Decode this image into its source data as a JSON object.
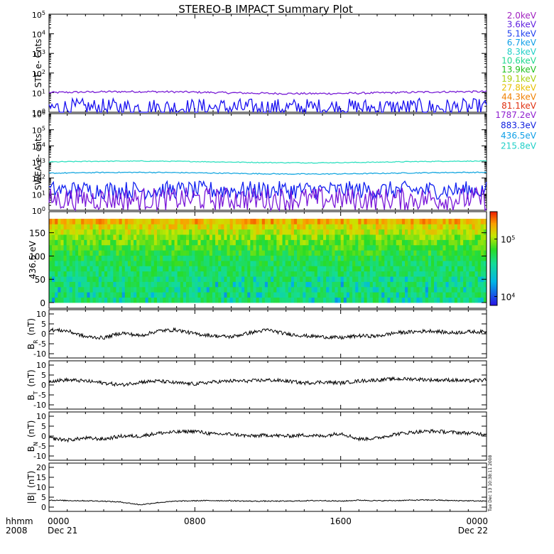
{
  "title": "STEREO-B IMPACT Summary Plot",
  "colors": {
    "ste_low": "#7a1fd6",
    "ste_high": "#1a10f0",
    "swea_a": "#30e0c0",
    "swea_b": "#18a8e0",
    "swea_c": "#1020f0",
    "swea_d": "#7a18d8",
    "trace": "#000000"
  },
  "ste_legend": [
    {
      "label": "2.0keV",
      "color": "#a020c0"
    },
    {
      "label": "3.6keV",
      "color": "#6020e0"
    },
    {
      "label": "5.1keV",
      "color": "#2040f0"
    },
    {
      "label": "6.7keV",
      "color": "#10a0e8"
    },
    {
      "label": "8.3keV",
      "color": "#20d0c8"
    },
    {
      "label": "10.6keV",
      "color": "#20d890"
    },
    {
      "label": "13.9keV",
      "color": "#20c020"
    },
    {
      "label": "19.1keV",
      "color": "#a8d010"
    },
    {
      "label": "27.8keV",
      "color": "#e8c000"
    },
    {
      "label": "44.3keV",
      "color": "#f08000"
    },
    {
      "label": "81.1keV",
      "color": "#e03010"
    }
  ],
  "swea_legend": [
    {
      "label": "1787.2eV",
      "color": "#9020d0"
    },
    {
      "label": "883.3eV",
      "color": "#1020e0"
    },
    {
      "label": "436.5eV",
      "color": "#10a0e8"
    },
    {
      "label": "215.8eV",
      "color": "#20d0c8"
    }
  ],
  "x_axis": {
    "corner_label_1": "hhmm",
    "corner_label_2": "2008",
    "ticks": [
      {
        "t": 0,
        "label": "0000",
        "sub": "Dec 21"
      },
      {
        "t": 8,
        "label": "0800",
        "sub": ""
      },
      {
        "t": 16,
        "label": "1600",
        "sub": ""
      },
      {
        "t": 24,
        "label": "0000",
        "sub": "Dec 22"
      }
    ]
  },
  "timestamp": "Tue Dec 13 10:38:11 2008",
  "chart_data": [
    {
      "type": "line",
      "panel": "ste",
      "ylabel": "STE e- Cnts",
      "yscale": "log",
      "ylim": [
        1,
        100000
      ],
      "yticks": [
        {
          "v": 1,
          "label": "10",
          "exp": "0"
        },
        {
          "v": 10,
          "label": "10",
          "exp": "1"
        },
        {
          "v": 100,
          "label": "10",
          "exp": "2"
        },
        {
          "v": 1000,
          "label": "10",
          "exp": "3"
        },
        {
          "v": 10000,
          "label": "10",
          "exp": "4"
        },
        {
          "v": 100000,
          "label": "10",
          "exp": "5"
        }
      ],
      "series": [
        {
          "level": 10,
          "noise": 0.1,
          "color_key": "ste_low"
        },
        {
          "level": 1.2,
          "noise": 0.3,
          "color_key": "ste_high",
          "spiky": true
        }
      ]
    },
    {
      "type": "line",
      "panel": "swea",
      "ylabel": "SWEA e- cnts",
      "yscale": "log",
      "ylim": [
        1,
        1000000
      ],
      "yticks": [
        {
          "v": 1,
          "label": "10",
          "exp": "0"
        },
        {
          "v": 10,
          "label": "10",
          "exp": "1"
        },
        {
          "v": 100,
          "label": "10",
          "exp": "2"
        },
        {
          "v": 1000,
          "label": "10",
          "exp": "3"
        },
        {
          "v": 10000,
          "label": "10",
          "exp": "4"
        },
        {
          "v": 100000,
          "label": "10",
          "exp": "5"
        },
        {
          "v": 1000000,
          "label": "10",
          "exp": "6"
        }
      ],
      "series": [
        {
          "level": 1000,
          "noise": 0.05,
          "color_key": "swea_a"
        },
        {
          "level": 200,
          "noise": 0.06,
          "color_key": "swea_b"
        },
        {
          "level": 12,
          "noise": 0.35,
          "color_key": "swea_c",
          "spiky": true
        },
        {
          "level": 3,
          "noise": 0.45,
          "color_key": "swea_d",
          "spiky": true
        }
      ]
    },
    {
      "type": "heatmap",
      "panel": "pad",
      "ylabel": "436.5 eV",
      "ylim": [
        0,
        180
      ],
      "yticks": [
        0,
        50,
        100,
        150
      ],
      "colorbar": {
        "min": 7000,
        "max": 300000,
        "ticks": [
          {
            "v": 10000,
            "label": "10",
            "exp": "4"
          },
          {
            "v": 100000,
            "label": "10",
            "exp": "5"
          }
        ]
      }
    },
    {
      "type": "line",
      "panel": "br",
      "ylabel": "B",
      "ylabel_sub": "R",
      "ylabel_unit": "(nT)",
      "ylim": [
        -10,
        10
      ],
      "yticks": [
        {
          "v": 10,
          "label": "10"
        },
        {
          "v": 5,
          "label": "5"
        },
        {
          "v": 0,
          "label": "0"
        },
        {
          "v": -5,
          "label": "-5"
        },
        {
          "v": -10,
          "label": "-10"
        }
      ],
      "x": [
        0,
        1,
        2,
        3,
        4,
        5,
        6,
        7,
        8,
        9,
        10,
        11,
        12,
        13,
        14,
        15,
        16,
        17,
        18,
        19,
        20,
        21,
        22,
        23,
        24
      ],
      "values": [
        2,
        1.5,
        -1.5,
        -2,
        0.5,
        -1,
        1.5,
        2,
        0,
        -1,
        -1.5,
        0.5,
        2,
        0,
        -1,
        -1.5,
        -2,
        -1,
        -1.2,
        0.5,
        1,
        1.5,
        0.5,
        1,
        1
      ]
    },
    {
      "type": "line",
      "panel": "bt",
      "ylabel": "B",
      "ylabel_sub": "T",
      "ylabel_unit": "(nT)",
      "ylim": [
        -10,
        10
      ],
      "yticks": [
        {
          "v": 10,
          "label": "10"
        },
        {
          "v": 5,
          "label": "5"
        },
        {
          "v": 0,
          "label": "0"
        },
        {
          "v": -5,
          "label": "-5"
        },
        {
          "v": -10,
          "label": "-10"
        }
      ],
      "x": [
        0,
        1,
        2,
        3,
        4,
        5,
        6,
        7,
        8,
        9,
        10,
        11,
        12,
        13,
        14,
        15,
        16,
        17,
        18,
        19,
        20,
        21,
        22,
        23,
        24
      ],
      "values": [
        2,
        2.5,
        2,
        1,
        0,
        1.5,
        2,
        1,
        0.5,
        1.5,
        2,
        2,
        2.5,
        2,
        1,
        1.5,
        1,
        2,
        2.5,
        3,
        3,
        2.5,
        2.5,
        2,
        2.5
      ]
    },
    {
      "type": "line",
      "panel": "bn",
      "ylabel": "B",
      "ylabel_sub": "N",
      "ylabel_unit": "(nT)",
      "ylim": [
        -10,
        10
      ],
      "yticks": [
        {
          "v": 10,
          "label": "10"
        },
        {
          "v": 5,
          "label": "5"
        },
        {
          "v": 0,
          "label": "0"
        },
        {
          "v": -5,
          "label": "-5"
        },
        {
          "v": -10,
          "label": "-10"
        }
      ],
      "x": [
        0,
        1,
        2,
        3,
        4,
        5,
        6,
        7,
        8,
        9,
        10,
        11,
        12,
        13,
        14,
        15,
        16,
        17,
        18,
        19,
        20,
        21,
        22,
        23,
        24
      ],
      "values": [
        -1,
        -2,
        -1,
        -1.5,
        0,
        0,
        1.5,
        2,
        2.5,
        1,
        1,
        0,
        0.5,
        0,
        0.5,
        0,
        1.5,
        -1.5,
        -1,
        1,
        2,
        2.5,
        2,
        1.5,
        1
      ]
    },
    {
      "type": "line",
      "panel": "bmag",
      "ylabel": "|B|",
      "ylabel_unit": "(nT)",
      "ylim": [
        0,
        20
      ],
      "yticks": [
        {
          "v": 20,
          "label": "20"
        },
        {
          "v": 15,
          "label": "15"
        },
        {
          "v": 10,
          "label": "10"
        },
        {
          "v": 5,
          "label": "5"
        },
        {
          "v": 0,
          "label": "0"
        }
      ],
      "x": [
        0,
        1,
        2,
        3,
        4,
        5,
        6,
        7,
        8,
        9,
        10,
        11,
        12,
        13,
        14,
        15,
        16,
        17,
        18,
        19,
        20,
        21,
        22,
        23,
        24
      ],
      "values": [
        3.5,
        3.3,
        3.2,
        3,
        2.5,
        1.2,
        2.3,
        3,
        3.2,
        3.3,
        3.2,
        3,
        3,
        3,
        3.2,
        3.3,
        3,
        3.5,
        3.2,
        3.3,
        3.5,
        3.6,
        3.3,
        3.2,
        3
      ]
    }
  ]
}
